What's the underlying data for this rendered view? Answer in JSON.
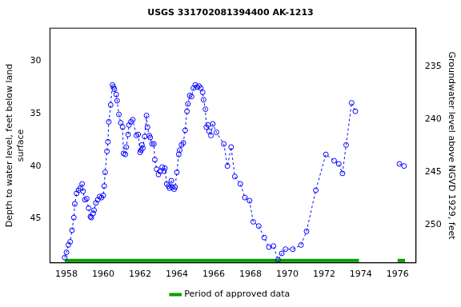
{
  "chart_data": {
    "type": "scatter",
    "title": "USGS 331702081394400 AK-1213",
    "y_label": [
      "Depth to water level, feet below land",
      "surface"
    ],
    "y2_label": "Groundwater level above NGVD 1929, feet",
    "x": [
      1957.9,
      1958.0,
      1958.1,
      1958.2,
      1958.3,
      1958.4,
      1958.45,
      1958.55,
      1958.65,
      1958.75,
      1958.85,
      1958.9,
      1959.0,
      1959.1,
      1959.2,
      1959.3,
      1959.35,
      1959.45,
      1959.5,
      1959.6,
      1959.7,
      1959.8,
      1959.9,
      1960.0,
      1960.05,
      1960.1,
      1960.2,
      1960.25,
      1960.3,
      1960.4,
      1960.5,
      1960.55,
      1960.6,
      1960.7,
      1960.75,
      1960.85,
      1960.95,
      1961.05,
      1961.1,
      1961.2,
      1961.25,
      1961.35,
      1961.4,
      1961.5,
      1961.6,
      1961.8,
      1961.9,
      1962.0,
      1962.05,
      1962.1,
      1962.15,
      1962.25,
      1962.35,
      1962.4,
      1962.5,
      1962.55,
      1962.65,
      1962.75,
      1962.8,
      1962.9,
      1963.0,
      1963.1,
      1963.2,
      1963.3,
      1963.35,
      1963.45,
      1963.55,
      1963.6,
      1963.7,
      1963.75,
      1963.85,
      1963.9,
      1964.0,
      1964.1,
      1964.15,
      1964.25,
      1964.35,
      1964.45,
      1964.55,
      1964.6,
      1964.7,
      1964.8,
      1964.9,
      1965.0,
      1965.1,
      1965.2,
      1965.3,
      1965.4,
      1965.45,
      1965.55,
      1965.6,
      1965.7,
      1965.75,
      1965.85,
      1965.95,
      1966.15,
      1966.55,
      1966.75,
      1966.95,
      1967.15,
      1967.45,
      1967.7,
      1967.95,
      1968.15,
      1968.45,
      1968.75,
      1969.0,
      1969.25,
      1969.5,
      1969.7,
      1969.9,
      1970.3,
      1970.75,
      1971.05,
      1971.55,
      1972.1,
      1972.55,
      1972.8,
      1973.0,
      1973.2,
      1973.5,
      1973.7,
      1974.9,
      1976.1,
      1976.35
    ],
    "values": [
      48.7,
      48.2,
      47.5,
      47.2,
      46.1,
      44.9,
      43.6,
      42.6,
      42.3,
      42.1,
      41.7,
      42.4,
      43.2,
      43.1,
      44.0,
      44.8,
      44.9,
      44.5,
      44.2,
      43.5,
      43.2,
      42.9,
      43.0,
      42.8,
      41.9,
      40.6,
      38.6,
      37.7,
      35.8,
      34.2,
      32.3,
      32.5,
      32.7,
      33.2,
      33.8,
      35.1,
      35.9,
      36.3,
      38.8,
      38.9,
      38.2,
      37.0,
      36.1,
      35.8,
      35.6,
      37.1,
      37.0,
      38.7,
      38.5,
      38.0,
      38.3,
      37.2,
      35.2,
      36.3,
      37.1,
      37.3,
      37.9,
      37.9,
      39.4,
      40.3,
      40.8,
      40.5,
      40.1,
      40.5,
      40.2,
      41.7,
      41.9,
      42.1,
      41.4,
      42.0,
      42.2,
      42.0,
      40.6,
      38.9,
      38.5,
      38.0,
      37.8,
      36.6,
      34.8,
      34.1,
      33.3,
      33.4,
      32.6,
      32.3,
      32.5,
      32.4,
      32.6,
      33.0,
      33.7,
      34.6,
      36.3,
      36.1,
      36.7,
      37.1,
      36.0,
      36.8,
      37.9,
      40.0,
      38.2,
      41.0,
      41.7,
      43.0,
      43.3,
      45.3,
      45.7,
      46.8,
      47.7,
      47.6,
      48.9,
      48.3,
      47.9,
      47.9,
      47.5,
      46.2,
      42.3,
      38.9,
      39.5,
      39.8,
      40.7,
      38.0,
      34.0,
      34.8,
      null,
      39.8,
      40.0
    ],
    "color": "#0000ff",
    "marker": "circle",
    "line_style": "dashed",
    "xlim": [
      1957.1,
      1977.0
    ],
    "xticks": [
      1958,
      1960,
      1962,
      1964,
      1966,
      1968,
      1970,
      1972,
      1974,
      1976
    ],
    "ylim": [
      26.9,
      49.2
    ],
    "yticks": [
      30,
      35,
      40,
      45
    ],
    "y2lim": [
      253.65,
      231.35
    ],
    "y2ticks": [
      235,
      240,
      245,
      250
    ],
    "approved_periods": [
      [
        1957.9,
        1973.9
      ],
      [
        1976.0,
        1976.4
      ]
    ],
    "approved_label": "Period of approved data",
    "approved_color": "#00a000",
    "grid": false
  }
}
